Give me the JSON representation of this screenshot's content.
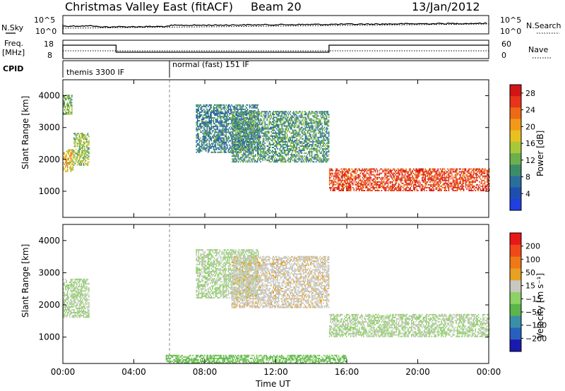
{
  "header": {
    "radar_title": "Christmas Valley East (fitACF)",
    "beam": "Beam 20",
    "date": "13/Jan/2012"
  },
  "status_panels": {
    "nsky_label": "N.Sky",
    "nsearch_label": "N.Search",
    "freq_label": "Freq.",
    "freq_unit": "[MHz]",
    "nave_label": "Nave",
    "cpid_label": "CPID",
    "noise_left_ticks": [
      "10^5",
      "10^0"
    ],
    "noise_right_ticks": [
      "10^5",
      "10^0"
    ],
    "freq_left_ticks": [
      "18",
      "8"
    ],
    "freq_right_ticks": [
      "60",
      "0"
    ],
    "cpid_segments": [
      {
        "label": "themis 3300 IF",
        "start_hour": 0,
        "end_hour": 6
      },
      {
        "label": "normal (fast) 151 IF",
        "start_hour": 6,
        "end_hour": 24
      }
    ]
  },
  "chart_data": [
    {
      "type": "heatmap",
      "name": "power",
      "ylabel": "Slant Range [km]",
      "xlabel": "",
      "xlim": [
        0,
        24
      ],
      "ylim": [
        180,
        4500
      ],
      "x_ticks": [
        "00:00",
        "04:00",
        "08:00",
        "12:00",
        "16:00",
        "20:00",
        "00:00"
      ],
      "y_ticks": [
        1000,
        2000,
        3000,
        4000
      ],
      "colorbar": {
        "label": "Power [dB]",
        "ticks": [
          4,
          8,
          12,
          16,
          20,
          24,
          28
        ],
        "range": [
          0,
          30
        ],
        "colors": [
          "#1f3fe0",
          "#1e4fb0",
          "#2a6e9c",
          "#3c8c6a",
          "#6ab04c",
          "#a8c83a",
          "#e8c020",
          "#f29a18",
          "#ee6a14",
          "#e8341a",
          "#d41414"
        ]
      },
      "echo_bands": [
        {
          "t": [
            0.0,
            0.6
          ],
          "r": [
            1600,
            2300
          ],
          "level": 18
        },
        {
          "t": [
            0.0,
            0.5
          ],
          "r": [
            3400,
            4000
          ],
          "level": 12
        },
        {
          "t": [
            0.6,
            1.5
          ],
          "r": [
            1800,
            2800
          ],
          "level": 14
        },
        {
          "t": [
            7.5,
            11.0
          ],
          "r": [
            2200,
            3700
          ],
          "level": 8
        },
        {
          "t": [
            9.5,
            15.0
          ],
          "r": [
            1900,
            3500
          ],
          "level": 10
        },
        {
          "t": [
            15.0,
            24.0
          ],
          "r": [
            1000,
            1700
          ],
          "level": 26
        }
      ]
    },
    {
      "type": "heatmap",
      "name": "velocity",
      "ylabel": "Slant Range [km]",
      "xlabel": "Time UT",
      "xlim": [
        0,
        24
      ],
      "ylim": [
        180,
        4500
      ],
      "x_ticks": [
        "00:00",
        "04:00",
        "08:00",
        "12:00",
        "16:00",
        "20:00",
        "00:00"
      ],
      "y_ticks": [
        1000,
        2000,
        3000,
        4000
      ],
      "colorbar": {
        "label": "Velocity [m s⁻¹]",
        "ticks": [
          200,
          100,
          50,
          15,
          -15,
          -50,
          -100,
          -200
        ],
        "range": [
          -250,
          250
        ],
        "colors": [
          "#1a1ab0",
          "#2860c0",
          "#3a8fa8",
          "#5cb44a",
          "#8cd264",
          "#c8c8c0",
          "#e8a020",
          "#f07818",
          "#f04818",
          "#e81818"
        ]
      },
      "echo_bands": [
        {
          "t": [
            0.0,
            1.5
          ],
          "r": [
            1600,
            2800
          ],
          "level": 0
        },
        {
          "t": [
            7.5,
            11.0
          ],
          "r": [
            2200,
            3700
          ],
          "level": 0
        },
        {
          "t": [
            9.5,
            15.0
          ],
          "r": [
            1900,
            3500
          ],
          "level": 30
        },
        {
          "t": [
            15.0,
            24.0
          ],
          "r": [
            1000,
            1700
          ],
          "level": 0
        },
        {
          "t": [
            5.8,
            16.0
          ],
          "r": [
            180,
            450
          ],
          "level": -60
        }
      ]
    }
  ]
}
